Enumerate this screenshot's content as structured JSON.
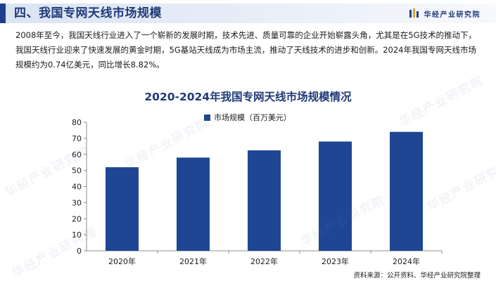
{
  "header": {
    "section_title": "四、我国专网天线市场规模",
    "brand_name": "华经产业研究院"
  },
  "intro_text": "2008年至今，我国天线行业进入了一个崭新的发展时期，技术先进、质量可靠的企业开始崭露头角，尤其是在5G技术的推动下，我国天线行业迎来了快速发展的黄金时期，5G基站天线成为市场主流，推动了天线技术的进步和创新。2024年我国专网天线市场规模约为0.74亿美元，同比增长8.82%。",
  "colors": {
    "bar": "#1e4693",
    "title": "#1f3a78",
    "accent": "#1f3f8c"
  },
  "source": "资料来源：公开资料、华经产业研究院整理",
  "watermark": "华经产业研究院",
  "chart_data": {
    "type": "bar",
    "title": "2020-2024年我国专网天线市场规模情况",
    "categories": [
      "2020年",
      "2021年",
      "2022年",
      "2023年",
      "2024年"
    ],
    "series": [
      {
        "name": "市场规模（百万美元）",
        "values": [
          52,
          58,
          62.5,
          68,
          74
        ]
      }
    ],
    "yticks": [
      "0",
      "10",
      "20",
      "30",
      "40",
      "50",
      "60",
      "70",
      "80"
    ],
    "ylim": [
      0,
      80
    ],
    "grid": false,
    "legend": "top-center"
  }
}
